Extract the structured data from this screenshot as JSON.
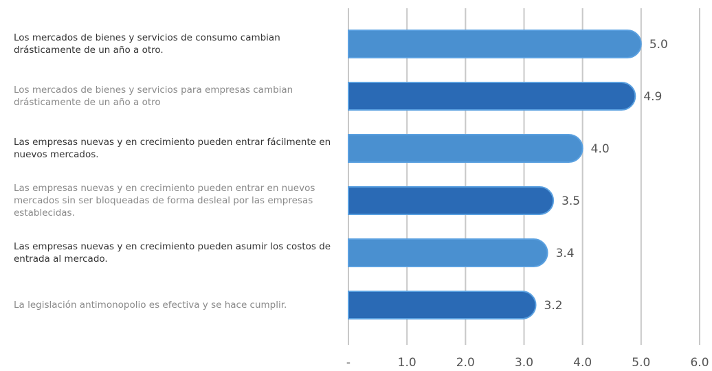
{
  "chart_data": {
    "type": "bar",
    "orientation": "horizontal",
    "categories": [
      "Los mercados de bienes y servicios de consumo cambian drásticamente de un año a otro.",
      "Los mercados de bienes y servicios para empresas cambian drásticamente de un año a otro",
      "Las empresas nuevas y en crecimiento pueden entrar fácilmente en nuevos mercados.",
      "Las empresas nuevas y en crecimiento pueden entrar en nuevos mercados sin ser bloqueadas de forma desleal por las empresas establecidas.",
      "Las empresas nuevas y en crecimiento pueden asumir los costos de entrada al mercado.",
      "La legislación antimonopolio es efectiva y se hace cumplir."
    ],
    "values": [
      5.0,
      4.9,
      4.0,
      3.5,
      3.4,
      3.2
    ],
    "value_labels": [
      "5.0",
      "4.9",
      "4.0",
      "3.5",
      "3.4",
      "3.2"
    ],
    "colors": [
      "#4a90d0",
      "#2a6ab5",
      "#4a90d0",
      "#2a6ab5",
      "#4a90d0",
      "#2a6ab5"
    ],
    "xlim": [
      0,
      6
    ],
    "xticks": [
      {
        "value": 0,
        "label": "-"
      },
      {
        "value": 1,
        "label": "1.0"
      },
      {
        "value": 2,
        "label": "2.0"
      },
      {
        "value": 3,
        "label": "3.0"
      },
      {
        "value": 4,
        "label": "4.0"
      },
      {
        "value": 5,
        "label": "5.0"
      },
      {
        "value": 6,
        "label": "6.0"
      }
    ],
    "grid": true
  }
}
